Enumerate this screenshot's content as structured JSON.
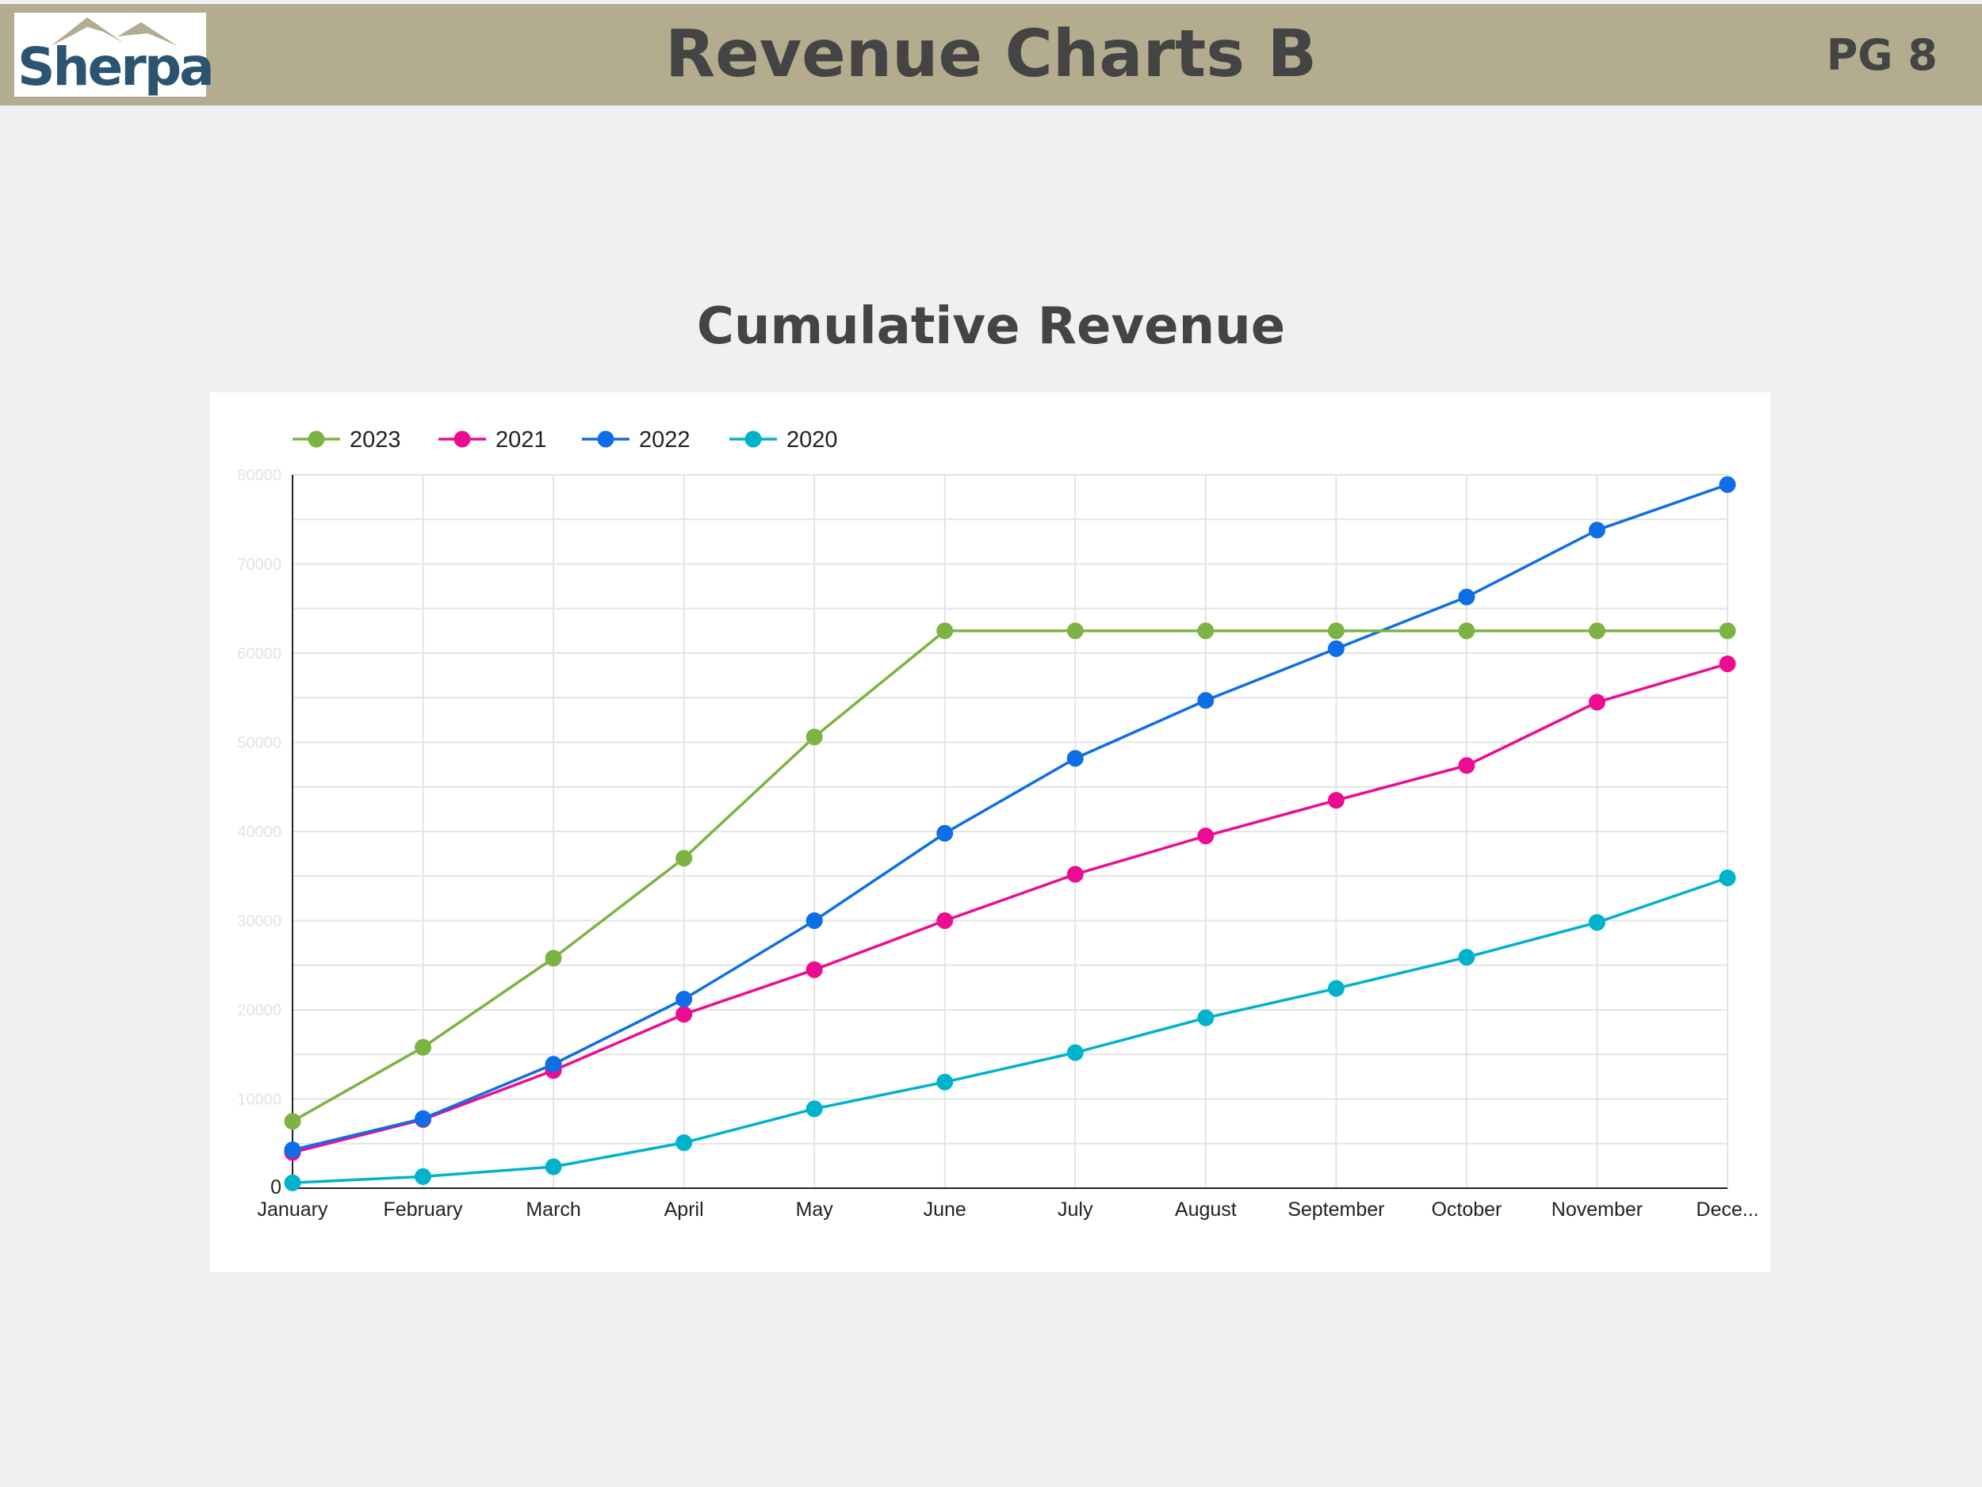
{
  "header": {
    "logo_text": "Sherpa",
    "title": "Revenue Charts B",
    "page": "PG 8"
  },
  "colors": {
    "header_bg": "#b3ac8f",
    "page_bg": "#eef0f2",
    "logo_text": "#2c5470",
    "logo_mountain": "#b3ac8f"
  },
  "chart_data": {
    "type": "line",
    "title": "Cumulative Revenue",
    "xlabel": "",
    "ylabel": "",
    "categories": [
      "January",
      "February",
      "March",
      "April",
      "May",
      "June",
      "July",
      "August",
      "September",
      "October",
      "November",
      "Dece..."
    ],
    "ylim": [
      0,
      80000
    ],
    "yticks": [
      0,
      10000,
      20000,
      30000,
      40000,
      50000,
      60000,
      70000,
      80000
    ],
    "ytick_labels": [
      "0",
      "10000",
      "20000",
      "30000",
      "40000",
      "50000",
      "60000",
      "70000",
      "80000"
    ],
    "grid": true,
    "legend_position": "top-left",
    "series": [
      {
        "name": "2023",
        "color": "#7cb342",
        "values": [
          7500,
          15800,
          25800,
          37000,
          50600,
          62500,
          62500,
          62500,
          62500,
          62500,
          62500,
          62500
        ]
      },
      {
        "name": "2021",
        "color": "#ec0c91",
        "values": [
          4000,
          7700,
          13200,
          19500,
          24500,
          30000,
          35200,
          39500,
          43500,
          47400,
          54500,
          58800
        ]
      },
      {
        "name": "2022",
        "color": "#0d6ee6",
        "values": [
          4300,
          7800,
          13900,
          21200,
          30000,
          39800,
          48200,
          54700,
          60500,
          66300,
          73800,
          78900
        ]
      },
      {
        "name": "2020",
        "color": "#00b2cc",
        "values": [
          600,
          1300,
          2400,
          5100,
          8900,
          11900,
          15200,
          19100,
          22400,
          25900,
          29800,
          34800
        ]
      }
    ]
  }
}
